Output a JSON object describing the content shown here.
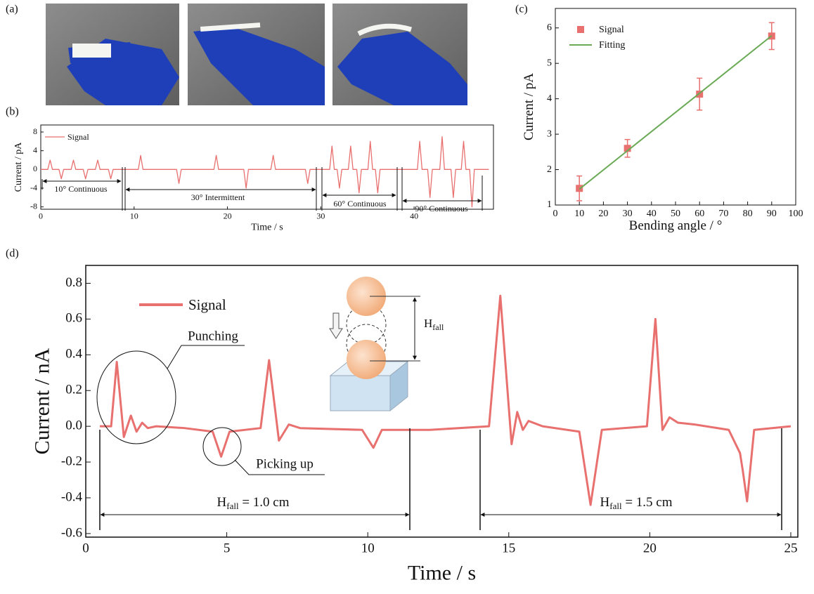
{
  "panels": [
    "(a)",
    "(b)",
    "(c)",
    "(d)"
  ],
  "chart_data": [
    {
      "type": "line",
      "xlabel": "Time / s",
      "ylabel": "Current / pA",
      "xlim": [
        0,
        48.5
      ],
      "ylim": [
        -8.5,
        9.5
      ],
      "xticks": [
        0,
        10,
        20,
        30,
        40
      ],
      "yticks": [
        -8,
        -4,
        0,
        4,
        8
      ],
      "sections": [
        "10°  Continuous",
        "30°  Intermittent",
        "60°  Continuous",
        "90°  Continuous"
      ],
      "x": [
        0,
        0.75,
        1,
        1.25,
        1.95,
        2.2,
        2.45,
        3.25,
        3.5,
        3.75,
        4.55,
        4.8,
        5.05,
        5.85,
        6.1,
        6.35,
        7.25,
        7.5,
        7.75,
        10.45,
        10.7,
        10.95,
        14.55,
        14.8,
        15.05,
        18.55,
        18.8,
        19.05,
        21.75,
        22,
        22.25,
        24.65,
        24.9,
        25.15,
        28.35,
        28.6,
        28.85,
        30.95,
        31.2,
        31.45,
        31.75,
        32,
        32.25,
        32.95,
        33.2,
        33.45,
        33.85,
        34.1,
        34.35,
        35.05,
        35.3,
        35.55,
        35.85,
        36.1,
        36.35,
        40.35,
        40.6,
        40.85,
        41.45,
        41.7,
        41.95,
        42.75,
        43,
        43.25,
        43.95,
        44.2,
        44.45,
        45.05,
        45.3,
        45.55,
        45.95,
        46.2,
        46.45,
        48
      ],
      "series": [
        {
          "name": "Signal",
          "color": "#e8706f",
          "values": [
            0,
            0,
            2,
            0,
            0,
            -2,
            0,
            0,
            2,
            0,
            0,
            -2,
            0,
            0,
            2,
            0,
            0,
            -2,
            0,
            0,
            3,
            0,
            0,
            -3,
            0,
            0,
            3,
            0,
            0,
            -4,
            0,
            0,
            3,
            0,
            0,
            -3,
            0,
            0,
            5,
            0,
            0,
            -4,
            0,
            0,
            5,
            0,
            0,
            -5,
            0,
            0,
            6,
            0,
            0,
            -5,
            0,
            0,
            6,
            0,
            0,
            -6,
            0,
            0,
            7,
            0,
            0,
            -6,
            0,
            0,
            6,
            0,
            0,
            -8,
            0,
            0
          ]
        }
      ]
    },
    {
      "type": "scatter",
      "xlabel": "Bending angle / °",
      "ylabel": "Current / pA",
      "xlim": [
        0,
        100
      ],
      "ylim": [
        1,
        6.55
      ],
      "xticks": [
        0,
        10,
        20,
        30,
        40,
        50,
        60,
        70,
        80,
        90,
        100
      ],
      "yticks": [
        1,
        2,
        3,
        4,
        5,
        6
      ],
      "series": [
        {
          "name": "Signal",
          "color": "#e8706f",
          "x": [
            10,
            30,
            60,
            90
          ],
          "values": [
            1.47,
            2.6,
            4.13,
            5.77
          ],
          "errors": [
            0.35,
            0.25,
            0.45,
            0.38
          ]
        },
        {
          "name": "Fitting",
          "color": "#6aaa55",
          "x": [
            10,
            90
          ],
          "values": [
            1.45,
            5.78
          ],
          "line": true
        }
      ]
    },
    {
      "type": "line",
      "xlabel": "Time / s",
      "ylabel": "Current / nA",
      "xlim": [
        0,
        25.25
      ],
      "ylim": [
        -0.62,
        0.9
      ],
      "xticks": [
        0,
        5,
        10,
        15,
        20,
        25
      ],
      "yticks": [
        -0.6,
        -0.4,
        -0.2,
        {
          "value": 0,
          "label": "0.0"
        },
        0.2,
        0.4,
        0.6,
        0.8
      ],
      "annotations": [
        "Punching",
        "Picking up"
      ],
      "diagram_label": {
        "symbol": "H",
        "subscript": "fall"
      },
      "ranges": [
        {
          "symbol": "H",
          "subscript": "fall",
          "text": " = 1.0 cm"
        },
        {
          "symbol": "H",
          "subscript": "fall",
          "text": " = 1.5 cm"
        }
      ],
      "x": [
        0.5,
        0.9,
        1.1,
        1.35,
        1.6,
        1.8,
        2.0,
        2.2,
        2.5,
        3.5,
        4.5,
        4.8,
        5.1,
        6.2,
        6.5,
        6.85,
        7.2,
        7.6,
        9.8,
        10.2,
        10.5,
        12.2,
        14.3,
        14.7,
        15.1,
        15.3,
        15.5,
        15.7,
        16.2,
        17.5,
        17.9,
        18.3,
        19.9,
        20.2,
        20.45,
        20.7,
        21.0,
        21.6,
        22.8,
        23.2,
        23.3,
        23.45,
        23.7,
        25.0
      ],
      "series": [
        {
          "name": "Signal",
          "color": "#e8706f",
          "values": [
            0,
            0,
            0.36,
            -0.06,
            0.06,
            -0.03,
            0.02,
            -0.01,
            0,
            -0.01,
            -0.03,
            -0.17,
            -0.03,
            -0.01,
            0.37,
            -0.08,
            0.01,
            -0.01,
            -0.02,
            -0.12,
            -0.02,
            -0.02,
            0,
            0.73,
            -0.1,
            0.08,
            -0.02,
            0.03,
            0,
            -0.03,
            -0.44,
            -0.02,
            0,
            0.6,
            -0.02,
            0.05,
            0.02,
            0.01,
            -0.02,
            -0.15,
            -0.25,
            -0.42,
            -0.02,
            0
          ]
        }
      ]
    }
  ]
}
